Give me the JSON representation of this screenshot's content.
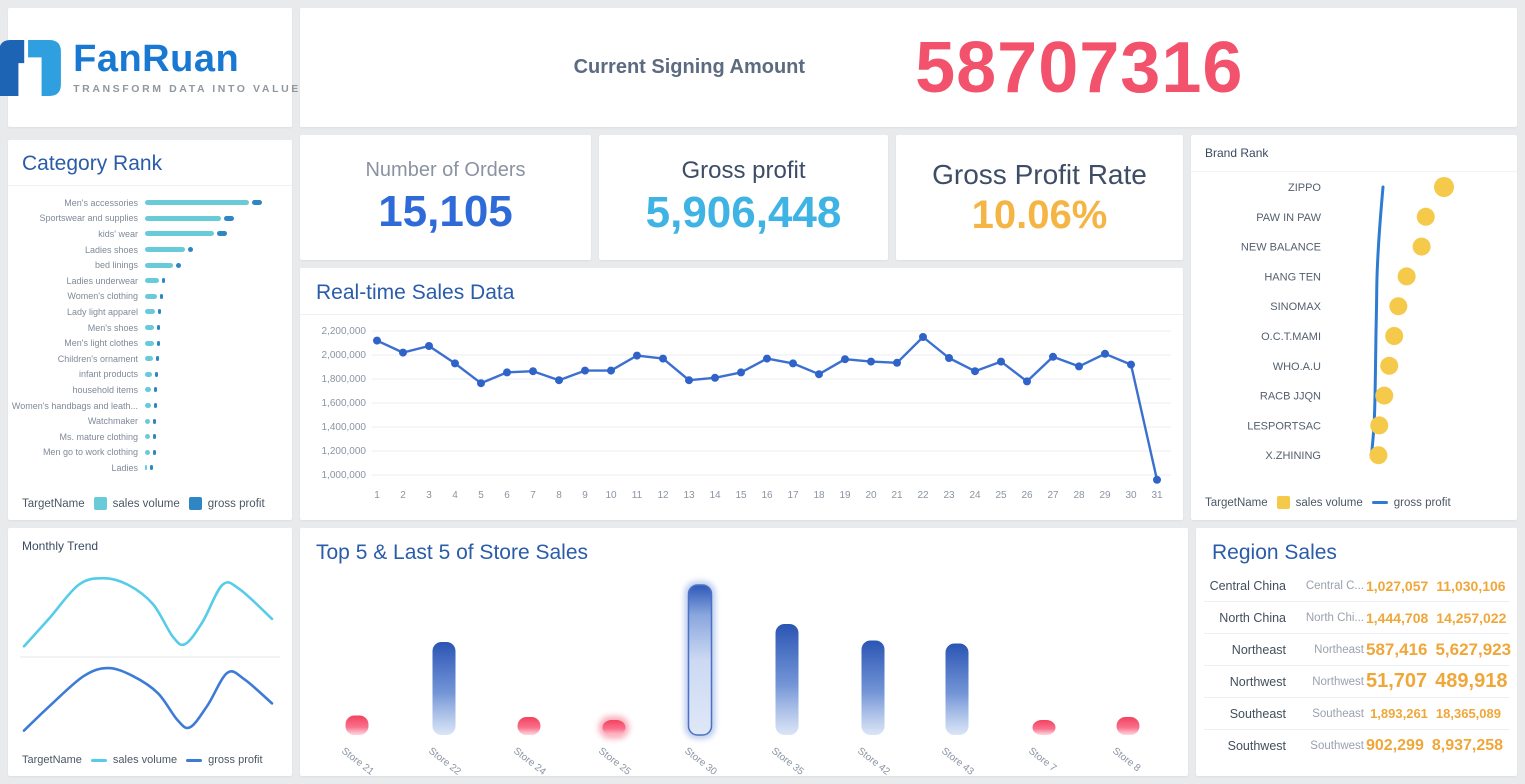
{
  "colors": {
    "page_background": "#e8eaec",
    "panel_title_blue": "#2a5caa",
    "accent_red": "#f2526b",
    "accent_royal_blue": "#2f6bd8",
    "accent_sky_blue": "#3fb3e3",
    "accent_amber": "#f5b544",
    "teal_bar": "#6acbd8",
    "blue_marker": "#2e86c4",
    "line_blue": "#3b6fd0",
    "bubble_yellow": "#f5c94a",
    "table_number_orange": "#f0a73a"
  },
  "logo": {
    "brand": "FanRuan",
    "tagline": "TRANSFORM DATA INTO VALUE"
  },
  "header": {
    "label": "Current Signing Amount",
    "value": "58707316",
    "value_color": "#f2526b"
  },
  "kpis": [
    {
      "label": "Number of Orders",
      "value": "15,105",
      "value_color": "#2f6bd8"
    },
    {
      "label": "Gross profit",
      "value": "5,906,448",
      "value_color": "#3fb3e3"
    },
    {
      "label": "Gross Profit Rate",
      "value": "10.06%",
      "value_color": "#f5b544"
    }
  ],
  "panels": {
    "category_rank": {
      "title": "Category Rank",
      "legend_title": "TargetName",
      "legend": [
        {
          "label": "sales volume",
          "color": "#6acbd8"
        },
        {
          "label": "gross profit",
          "color": "#2e86c4"
        }
      ]
    },
    "realtime": {
      "title": "Real-time Sales Data"
    },
    "brand_rank": {
      "title": "Brand Rank",
      "legend_title": "TargetName",
      "legend": [
        {
          "label": "sales volume",
          "color": "#f5c94a"
        },
        {
          "label": "gross profit",
          "color": "#2e7cd1"
        }
      ]
    },
    "monthly_trend": {
      "title": "Monthly Trend",
      "legend_title": "TargetName",
      "legend": [
        {
          "label": "sales volume",
          "color": "#56cce8"
        },
        {
          "label": "gross profit",
          "color": "#3d7bd6"
        }
      ]
    },
    "store_sales": {
      "title": "Top 5 & Last 5 of Store Sales"
    },
    "region_sales": {
      "title": "Region Sales"
    }
  },
  "chart_data": [
    {
      "id": "category_rank",
      "type": "bar",
      "orientation": "horizontal",
      "title": "Category Rank",
      "legend_title": "TargetName",
      "series_names": [
        "sales volume",
        "gross profit"
      ],
      "categories": [
        "Men's accessories",
        "Sportswear and supplies",
        "kids' wear",
        "Ladies shoes",
        "bed linings",
        "Ladies underwear",
        "Women's clothing",
        "Lady light apparel",
        "Men's shoes",
        "Men's light clothes",
        "Children's ornament",
        "infant products",
        "household items",
        "Women's handbags and leath...",
        "Watchmaker",
        "Ms. mature clothing",
        "Men go to work clothing",
        "Ladies"
      ],
      "sales_volume_relative": [
        100,
        73,
        66,
        38,
        27,
        13,
        12,
        10,
        9,
        9,
        8,
        7,
        6,
        6,
        5,
        5,
        5,
        2
      ],
      "note": "bars are unlabeled; values are relative lengths 0-100",
      "colors": {
        "sales_volume": "#6acbd8",
        "gross_profit": "#2e86c4"
      }
    },
    {
      "id": "realtime",
      "type": "line",
      "title": "Real-time Sales Data",
      "x": [
        1,
        2,
        3,
        4,
        5,
        6,
        7,
        8,
        9,
        10,
        11,
        12,
        13,
        14,
        15,
        16,
        17,
        18,
        19,
        20,
        21,
        22,
        23,
        24,
        25,
        26,
        27,
        28,
        29,
        30,
        31
      ],
      "values": [
        2120000,
        2020000,
        2075000,
        1930000,
        1765000,
        1855000,
        1865000,
        1790000,
        1870000,
        1870000,
        1995000,
        1970000,
        1790000,
        1810000,
        1855000,
        1970000,
        1930000,
        1840000,
        1965000,
        1945000,
        1935000,
        2150000,
        1975000,
        1865000,
        1945000,
        1780000,
        1985000,
        1905000,
        2010000,
        1920000,
        960000
      ],
      "ylim": [
        1000000,
        2200000
      ],
      "yticks": [
        "2,200,000",
        "2,000,000",
        "1,800,000",
        "1,600,000",
        "1,400,000",
        "1,200,000",
        "1,000,000"
      ],
      "grid": true,
      "line_color": "#3b6fd0"
    },
    {
      "id": "brand_rank",
      "type": "scatter-line",
      "title": "Brand Rank",
      "legend_title": "TargetName",
      "categories": [
        "ZIPPO",
        "PAW IN PAW",
        "NEW BALANCE",
        "HANG TEN",
        "SINOMAX",
        "O.C.T.MAMI",
        "WHO.A.U",
        "RACB JJQN",
        "LESPORTSAC",
        "X.ZHINING"
      ],
      "sales_volume_relative": [
        100,
        78,
        73,
        55,
        45,
        40,
        34,
        28,
        22,
        21
      ],
      "gross_profit_relative": [
        26.5,
        23.5,
        21,
        19.3,
        18.7,
        18,
        17.5,
        16.9,
        15.7,
        12.7
      ],
      "note": "axes unlabeled; values are relative 0-100 estimated from marker positions",
      "colors": {
        "sales_volume": "#f5c94a",
        "gross_profit": "#2e7cd1"
      }
    },
    {
      "id": "monthly_trend",
      "type": "line",
      "title": "Monthly Trend",
      "legend_title": "TargetName",
      "note": "two smooth unlabeled trend curves; shape points are [x_fraction, height_fraction]",
      "series": [
        {
          "name": "sales volume",
          "color": "#56cce8",
          "shape": [
            [
              0,
              0.05
            ],
            [
              0.1,
              0.42
            ],
            [
              0.22,
              0.88
            ],
            [
              0.32,
              0.97
            ],
            [
              0.42,
              0.88
            ],
            [
              0.52,
              0.62
            ],
            [
              0.6,
              0.18
            ],
            [
              0.65,
              0.08
            ],
            [
              0.72,
              0.38
            ],
            [
              0.8,
              0.88
            ],
            [
              0.87,
              0.82
            ],
            [
              1,
              0.42
            ]
          ]
        },
        {
          "name": "gross profit",
          "color": "#3d7bd6",
          "shape": [
            [
              0,
              0.05
            ],
            [
              0.1,
              0.4
            ],
            [
              0.24,
              0.85
            ],
            [
              0.34,
              0.97
            ],
            [
              0.44,
              0.85
            ],
            [
              0.54,
              0.6
            ],
            [
              0.62,
              0.2
            ],
            [
              0.67,
              0.1
            ],
            [
              0.74,
              0.42
            ],
            [
              0.82,
              0.9
            ],
            [
              0.89,
              0.8
            ],
            [
              1,
              0.45
            ]
          ]
        }
      ]
    },
    {
      "id": "store_sales",
      "type": "bar",
      "title": "Top 5 & Last 5 of Store Sales",
      "categories": [
        "Store 21",
        "Store 22",
        "Store 24",
        "Store 25",
        "Store 30",
        "Store 35",
        "Store 42",
        "Store 43",
        "Store 7",
        "Store 8"
      ],
      "values_relative": [
        13,
        62,
        12,
        10,
        100,
        74,
        63,
        61,
        10,
        12
      ],
      "bar_styles": [
        "pink",
        "blue",
        "pink",
        "pink-glow",
        "blue-selected",
        "blue",
        "blue",
        "blue",
        "pink",
        "pink"
      ],
      "note": "bars unlabeled; values are relative heights 0-100",
      "colors": {
        "blue_top": "#2b55b4",
        "blue_bottom": "#d4e0f4",
        "pink_top": "#f3425f",
        "pink_bottom": "#fdc0cb"
      }
    },
    {
      "id": "region_sales",
      "type": "table",
      "title": "Region Sales",
      "columns": [
        "region",
        "region_short",
        "sales volume",
        "gross profit"
      ],
      "rows": [
        {
          "region": "Central China",
          "region_short": "Central C...",
          "sales_volume": "1,027,057",
          "gross_profit": "11,030,106",
          "font_size": 14
        },
        {
          "region": "North China",
          "region_short": "North Chi...",
          "sales_volume": "1,444,708",
          "gross_profit": "14,257,022",
          "font_size": 14
        },
        {
          "region": "Northeast",
          "region_short": "Northeast",
          "sales_volume": "587,416",
          "gross_profit": "5,627,923",
          "font_size": 17
        },
        {
          "region": "Northwest",
          "region_short": "Northwest",
          "sales_volume": "51,707",
          "gross_profit": "489,918",
          "font_size": 20
        },
        {
          "region": "Southeast",
          "region_short": "Southeast",
          "sales_volume": "1,893,261",
          "gross_profit": "18,365,089",
          "font_size": 13
        },
        {
          "region": "Southwest",
          "region_short": "Southwest",
          "sales_volume": "902,299",
          "gross_profit": "8,937,258",
          "font_size": 16
        }
      ]
    }
  ]
}
